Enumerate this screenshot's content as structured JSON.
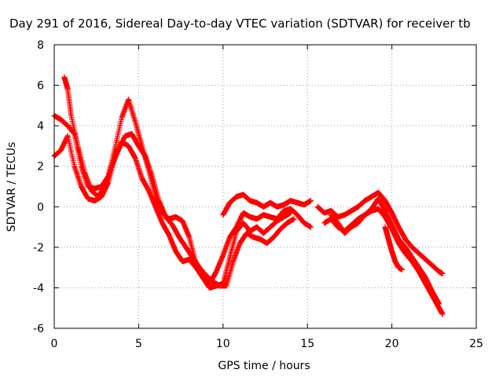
{
  "chart_data": {
    "type": "scatter",
    "title": "Day 291 of 2016, Sidereal Day-to-day VTEC variation (SDTVAR) for receiver tb",
    "xlabel": "GPS time / hours",
    "ylabel": "SDTVAR / TECUs",
    "xlim": [
      0,
      25
    ],
    "ylim": [
      -6,
      8
    ],
    "x_ticks": [
      0,
      5,
      10,
      15,
      20,
      25
    ],
    "y_ticks": [
      -6,
      -4,
      -2,
      0,
      2,
      4,
      6,
      8
    ],
    "grid": true,
    "legend": "none",
    "marker": "+",
    "color": "#ff0000",
    "series": [
      {
        "x": [
          0.0,
          0.4,
          0.8,
          1.2,
          1.6,
          2.0,
          2.4,
          2.8,
          3.2,
          3.6,
          4.0,
          4.4,
          4.8,
          5.2,
          5.6,
          6.0,
          6.4,
          6.8,
          7.2,
          7.6,
          8.0,
          8.4,
          8.8,
          9.2,
          9.6,
          10.0,
          10.4,
          10.8,
          11.2,
          11.6,
          12.0,
          12.4,
          12.8,
          13.2,
          13.6,
          14.0
        ],
        "y": [
          4.5,
          4.3,
          4.0,
          3.6,
          2.0,
          1.0,
          0.9,
          1.0,
          1.5,
          2.9,
          4.4,
          5.3,
          4.2,
          3.0,
          1.8,
          0.5,
          -0.3,
          -0.6,
          -0.5,
          -0.7,
          -1.5,
          -2.8,
          -3.5,
          -4.0,
          -3.9,
          -3.8,
          -2.5,
          -1.2,
          -0.8,
          -1.2,
          -1.0,
          -1.3,
          -1.0,
          -0.7,
          -0.5,
          -0.3
        ]
      },
      {
        "x": [
          0.6,
          0.8,
          1.0,
          1.4,
          1.8,
          2.2,
          2.6,
          3.0,
          3.4,
          3.8,
          4.2,
          4.6,
          5.0,
          5.4,
          5.8,
          6.2,
          6.6,
          7.0,
          7.4,
          7.8,
          8.2,
          8.6,
          9.0,
          9.4,
          9.8,
          10.2,
          10.6,
          11.0,
          11.4,
          11.8,
          12.2,
          12.6,
          13.0,
          13.4,
          13.8,
          14.2
        ],
        "y": [
          6.4,
          5.8,
          4.5,
          3.0,
          1.7,
          0.8,
          0.5,
          1.0,
          2.0,
          2.8,
          3.5,
          3.6,
          3.0,
          2.5,
          1.5,
          0.3,
          -0.5,
          -0.9,
          -1.5,
          -2.0,
          -2.5,
          -3.0,
          -3.4,
          -3.7,
          -3.9,
          -3.9,
          -2.7,
          -1.8,
          -1.3,
          -1.5,
          -1.6,
          -1.8,
          -1.5,
          -1.1,
          -0.8,
          -0.6
        ]
      },
      {
        "x": [
          0.0,
          0.4,
          0.8,
          1.2,
          1.6,
          2.0,
          2.4,
          2.8,
          3.2,
          3.6,
          4.0,
          4.4,
          4.8,
          5.2,
          5.6,
          6.0,
          6.4,
          6.8,
          7.2,
          7.6,
          8.0,
          8.4,
          8.8,
          9.2,
          9.6,
          10.0,
          10.4,
          10.8,
          11.2,
          11.6,
          12.0,
          12.4,
          12.8,
          13.2,
          13.6,
          14.0,
          14.4,
          14.8,
          15.2
        ],
        "y": [
          2.5,
          2.8,
          3.5,
          2.0,
          1.0,
          0.4,
          0.3,
          0.5,
          1.2,
          2.5,
          3.2,
          3.0,
          2.4,
          1.4,
          0.8,
          0.0,
          -0.8,
          -1.4,
          -2.2,
          -2.7,
          -2.6,
          -3.0,
          -3.5,
          -3.8,
          -3.2,
          -2.4,
          -1.5,
          -1.0,
          -0.3,
          -0.5,
          -0.6,
          -0.4,
          -0.5,
          -0.6,
          -0.2,
          -0.1,
          -0.4,
          -0.8,
          -1.0
        ]
      },
      {
        "x": [
          10.0,
          10.4,
          10.8,
          11.2,
          11.6,
          12.0,
          12.4,
          12.8,
          13.2,
          13.6,
          14.0,
          14.4,
          14.8,
          15.2
        ],
        "y": [
          -0.4,
          0.2,
          0.5,
          0.6,
          0.3,
          0.2,
          0.0,
          0.2,
          0.0,
          0.1,
          0.3,
          0.2,
          0.1,
          0.3
        ]
      },
      {
        "x": [
          15.6,
          16.0,
          16.4,
          16.8,
          17.2,
          17.6,
          18.0,
          18.4,
          18.8,
          19.2,
          19.6,
          20.0,
          20.4,
          20.8,
          21.2,
          21.6,
          22.0,
          22.4,
          22.8,
          23.0
        ],
        "y": [
          0.0,
          -0.3,
          -0.2,
          -0.5,
          -0.4,
          -0.2,
          0.0,
          0.3,
          0.5,
          0.7,
          0.3,
          -0.3,
          -1.0,
          -1.6,
          -2.0,
          -2.3,
          -2.6,
          -2.9,
          -3.2,
          -3.3
        ]
      },
      {
        "x": [
          16.0,
          16.4,
          16.8,
          17.2,
          17.6,
          18.0,
          18.4,
          18.8,
          19.2,
          19.6,
          20.0,
          20.4,
          20.8,
          21.2,
          21.6,
          22.0,
          22.4,
          22.8,
          23.0
        ],
        "y": [
          -0.8,
          -0.6,
          -1.0,
          -1.2,
          -0.9,
          -0.6,
          -0.4,
          -0.2,
          -0.1,
          -0.5,
          -1.1,
          -1.8,
          -2.3,
          -2.7,
          -3.2,
          -3.8,
          -4.4,
          -5.0,
          -5.3
        ]
      },
      {
        "x": [
          16.4,
          16.8,
          17.2,
          17.6,
          18.0,
          18.4,
          18.8,
          19.2,
          19.6,
          20.0,
          20.4,
          20.8,
          21.2,
          21.6,
          22.0,
          22.4,
          22.8
        ],
        "y": [
          -0.4,
          -0.8,
          -1.3,
          -1.0,
          -0.8,
          -0.4,
          -0.1,
          0.4,
          -0.2,
          -0.9,
          -1.6,
          -2.0,
          -2.5,
          -3.0,
          -3.5,
          -4.2,
          -4.8
        ]
      },
      {
        "x": [
          19.6,
          19.8,
          20.0,
          20.2,
          20.4,
          20.6
        ],
        "y": [
          -1.0,
          -1.6,
          -2.2,
          -2.7,
          -3.0,
          -3.1
        ]
      }
    ]
  }
}
